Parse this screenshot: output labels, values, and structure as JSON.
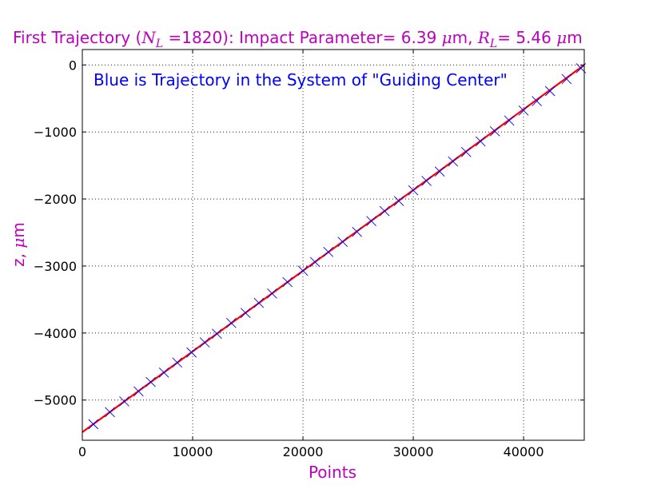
{
  "chart_data": {
    "type": "line",
    "title": {
      "prefix": "First Trajectory (",
      "nl_symbol": "N",
      "nl_sub": "L",
      "nl_eq": " =1820): Impact Parameter= 6.39 ",
      "mu1": "μ",
      "m1": "m, ",
      "rl_symbol": "R",
      "rl_sub": "L",
      "rl_eq": "= 5.46 ",
      "mu2": "μ",
      "m2": "m"
    },
    "annotation": "Blue is Trajectory in the System of \"Guiding Center\"",
    "xlabel": "Points",
    "ylabel": {
      "prefix": "z, ",
      "mu": "μ",
      "unit": "m"
    },
    "xlim": [
      0,
      45500
    ],
    "ylim": [
      -5600,
      230
    ],
    "xticks": [
      0,
      10000,
      20000,
      30000,
      40000
    ],
    "xtick_labels": [
      "0",
      "10000",
      "20000",
      "30000",
      "40000"
    ],
    "yticks": [
      0,
      -1000,
      -2000,
      -3000,
      -4000,
      -5000
    ],
    "ytick_labels": [
      "0",
      "−1000",
      "−2000",
      "−3000",
      "−4000",
      "−5000"
    ],
    "grid": true,
    "series": [
      {
        "color": "#ff0000",
        "style": "line",
        "x": [
          0,
          45500
        ],
        "y": [
          -5480,
          0
        ]
      },
      {
        "color": "#0000ff",
        "style": "x-marker",
        "x": [
          1000,
          2500,
          3800,
          5100,
          6200,
          7400,
          8600,
          9900,
          11100,
          12200,
          13500,
          14800,
          16000,
          17200,
          18600,
          20000,
          21100,
          22300,
          23600,
          24900,
          26200,
          27400,
          28700,
          30000,
          31200,
          32400,
          33600,
          34800,
          36100,
          37400,
          38700,
          40000,
          41200,
          42400,
          43900,
          45200
        ],
        "y": [
          -5360,
          -5180,
          -5020,
          -4870,
          -4730,
          -4590,
          -4440,
          -4290,
          -4140,
          -4010,
          -3850,
          -3700,
          -3550,
          -3410,
          -3240,
          -3070,
          -2940,
          -2790,
          -2640,
          -2490,
          -2330,
          -2180,
          -2030,
          -1870,
          -1730,
          -1590,
          -1440,
          -1300,
          -1140,
          -990,
          -830,
          -680,
          -540,
          -390,
          -210,
          -50
        ]
      }
    ]
  }
}
